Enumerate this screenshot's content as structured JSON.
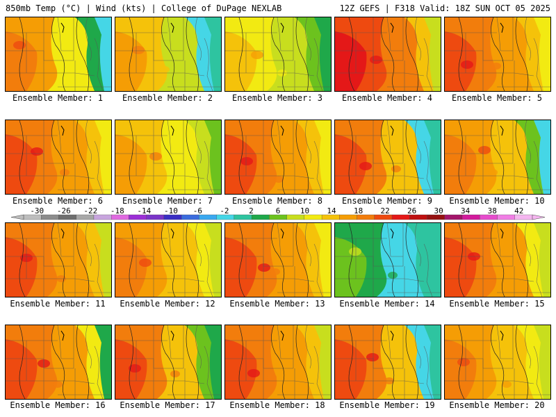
{
  "header": {
    "left": "850mb Temp (°C) | Wind (kts) | College of DuPage NEXLAB",
    "right": "12Z GEFS | F318 Valid: 18Z SUN OCT 05 2025"
  },
  "colorbar": {
    "ticks": [
      "-30",
      "-26",
      "-22",
      "-18",
      "-14",
      "-10",
      "-6",
      "-2",
      "2",
      "6",
      "10",
      "14",
      "18",
      "22",
      "26",
      "30",
      "34",
      "38",
      "42"
    ],
    "colors": [
      "#bdbdbd",
      "#8c8c8c",
      "#6e6e6e",
      "#a7a7a7",
      "#c8a5de",
      "#e06ae0",
      "#9b2fd6",
      "#7a35c8",
      "#3a2fc4",
      "#3b6cde",
      "#3aa8f0",
      "#45d6e6",
      "#2ec4a0",
      "#1fa84a",
      "#6cc21e",
      "#c8de1e",
      "#f2ea12",
      "#f5c20a",
      "#f59d05",
      "#f27d0c",
      "#ee4a10",
      "#e41818",
      "#bf1010",
      "#951111",
      "#a3156a",
      "#d21b9c",
      "#e64ccc",
      "#f07ee4",
      "#f5b6f0"
    ]
  },
  "members": [
    {
      "label": "Ensemble Member: 1",
      "icon": "temperature-map"
    },
    {
      "label": "Ensemble Member: 2",
      "icon": "temperature-map"
    },
    {
      "label": "Ensemble Member: 3",
      "icon": "temperature-map"
    },
    {
      "label": "Ensemble Member: 4",
      "icon": "temperature-map"
    },
    {
      "label": "Ensemble Member: 5",
      "icon": "temperature-map"
    },
    {
      "label": "Ensemble Member: 6",
      "icon": "temperature-map"
    },
    {
      "label": "Ensemble Member: 7",
      "icon": "temperature-map"
    },
    {
      "label": "Ensemble Member: 8",
      "icon": "temperature-map"
    },
    {
      "label": "Ensemble Member: 9",
      "icon": "temperature-map"
    },
    {
      "label": "Ensemble Member: 10",
      "icon": "temperature-map"
    },
    {
      "label": "Ensemble Member: 11",
      "icon": "temperature-map"
    },
    {
      "label": "Ensemble Member: 12",
      "icon": "temperature-map"
    },
    {
      "label": "Ensemble Member: 13",
      "icon": "temperature-map"
    },
    {
      "label": "Ensemble Member: 14",
      "icon": "temperature-map"
    },
    {
      "label": "Ensemble Member: 15",
      "icon": "temperature-map"
    },
    {
      "label": "Ensemble Member: 16",
      "icon": "temperature-map"
    },
    {
      "label": "Ensemble Member: 17",
      "icon": "temperature-map"
    },
    {
      "label": "Ensemble Member: 18",
      "icon": "temperature-map"
    },
    {
      "label": "Ensemble Member: 19",
      "icon": "temperature-map"
    },
    {
      "label": "Ensemble Member: 20",
      "icon": "temperature-map"
    }
  ]
}
